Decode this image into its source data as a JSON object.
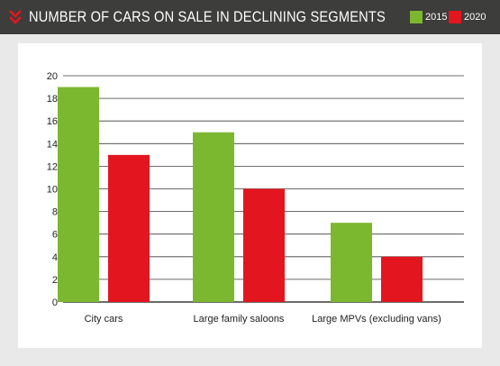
{
  "header": {
    "title": "NUMBER OF CARS ON SALE IN DECLINING SEGMENTS"
  },
  "colors": {
    "header_bg": "#3d3d3b",
    "accent": "#e3161f",
    "green": "#7cb82f",
    "red": "#e3161f"
  },
  "chart_data": {
    "type": "bar",
    "categories": [
      "City cars",
      "Large family saloons",
      "Large MPVs (excluding vans)"
    ],
    "series": [
      {
        "name": "2015",
        "color": "#7cb82f",
        "values": [
          19,
          15,
          7
        ]
      },
      {
        "name": "2020",
        "color": "#e3161f",
        "values": [
          13,
          10,
          4
        ]
      }
    ],
    "ylim": [
      0,
      20
    ],
    "yticks": [
      "0",
      "2",
      "4",
      "6",
      "8",
      "10",
      "12",
      "14",
      "16",
      "18",
      "20"
    ],
    "grid": true,
    "legend": "top-right"
  }
}
